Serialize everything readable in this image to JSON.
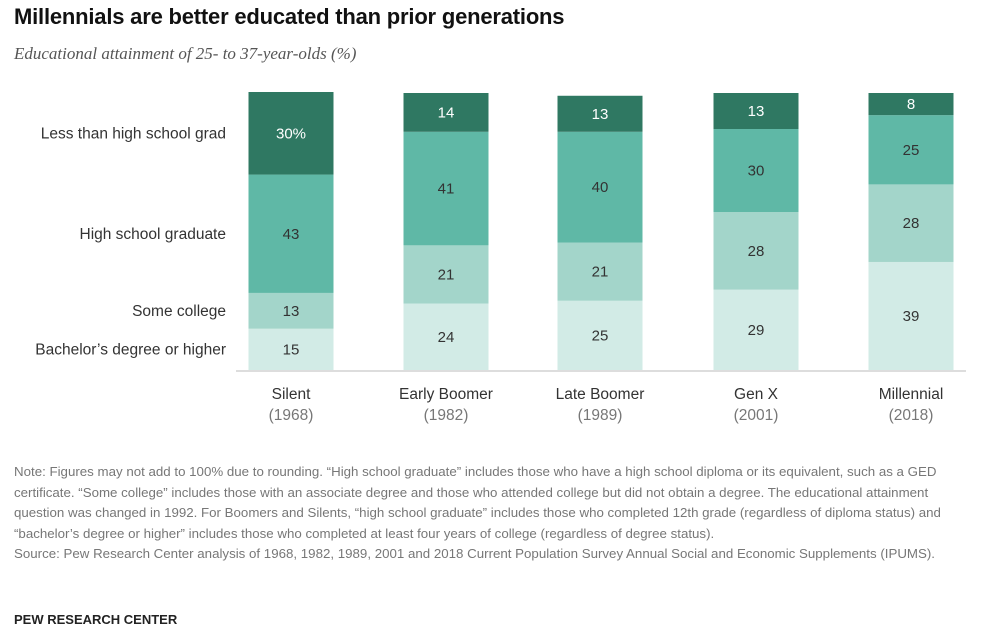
{
  "header": {
    "title": "Millennials are better educated than prior generations",
    "subtitle": "Educational attainment of 25- to 37-year-olds (%)"
  },
  "chart_data": {
    "type": "bar",
    "stacked": true,
    "categories": [
      "Silent",
      "Early Boomer",
      "Late Boomer",
      "Gen X",
      "Millennial"
    ],
    "category_years": [
      "(1968)",
      "(1982)",
      "(1989)",
      "(2001)",
      "(2018)"
    ],
    "series": [
      {
        "name": "Bachelor’s degree or higher",
        "values": [
          15,
          24,
          25,
          29,
          39
        ],
        "color": "#d2ebe6",
        "labels": [
          "15",
          "24",
          "25",
          "29",
          "39"
        ]
      },
      {
        "name": "Some college",
        "values": [
          13,
          21,
          21,
          28,
          28
        ],
        "color": "#a3d5ca",
        "labels": [
          "13",
          "21",
          "21",
          "28",
          "28"
        ]
      },
      {
        "name": "High school graduate",
        "values": [
          43,
          41,
          40,
          30,
          25
        ],
        "color": "#5fb8a6",
        "labels": [
          "43",
          "41",
          "40",
          "30",
          "25"
        ]
      },
      {
        "name": "Less than high school grad",
        "values": [
          30,
          14,
          13,
          13,
          8
        ],
        "color": "#2f7862",
        "labels": [
          "30%",
          "14",
          "13",
          "13",
          "8"
        ]
      }
    ],
    "legend_placement": "left"
  },
  "note": {
    "text": "Note: Figures may not add to 100% due to rounding. “High school graduate” includes those who have a high school diploma or its equivalent, such as a GED certificate. “Some college” includes those with an associate degree and those who attended college but did not obtain a degree. The educational attainment question was changed in 1992. For Boomers and Silents, “high school graduate” includes those who completed 12th grade (regardless of diploma status) and “bachelor’s degree or higher” includes those who completed at least four years of college (regardless of degree status).",
    "source": "Source: Pew Research Center analysis of 1968, 1982, 1989, 2001 and 2018 Current Population Survey Annual Social and Economic Supplements (IPUMS)."
  },
  "footer": {
    "brand": "PEW RESEARCH CENTER"
  }
}
